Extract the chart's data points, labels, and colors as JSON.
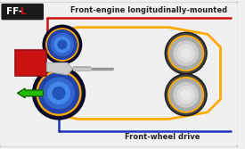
{
  "bg_color": "#f0f0f0",
  "border_color": "#bbbbbb",
  "label_ff_white": "FF-",
  "label_ff_red": "L",
  "label_top": "Front-engine longitudinally-mounted",
  "label_bottom": "Front-wheel drive",
  "red_color": "#cc1111",
  "blue_line_color": "#2233bb",
  "orange_color": "#ffaa00",
  "green_color": "#22bb00",
  "dark_bg": "#1a1a1a",
  "engine_red": "#cc1111",
  "engine_dark": "#991111",
  "trans_light": "#cccccc",
  "trans_dark": "#aaaaaa",
  "wheel_tire": "#111133",
  "wheel_tire_edge": "#000022",
  "wheel_blue_rim": "#2244aa",
  "wheel_blue_mid": "#3366cc",
  "wheel_blue_center": "#4488ee",
  "wheel_blue_inner": "#2255bb",
  "wheel_gray_tire": "#444444",
  "wheel_gray_rim": "#aaaaaa",
  "wheel_gray_mid": "#cccccc",
  "wheel_gray_center": "#dddddd",
  "wheel_gray_inner": "#e8e8e8",
  "axle_color": "#888888"
}
